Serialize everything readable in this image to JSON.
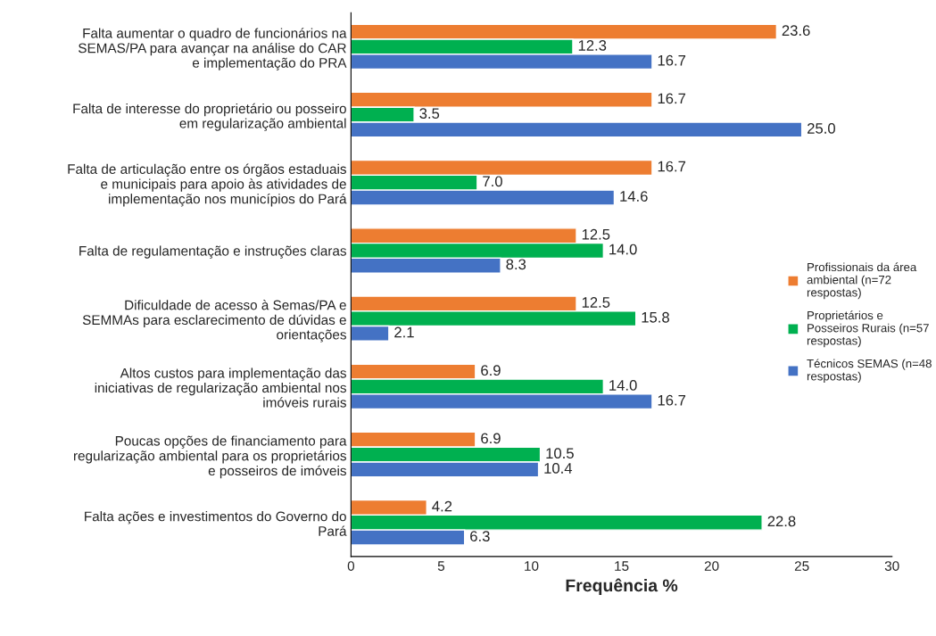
{
  "chart_data": {
    "type": "bar",
    "orientation": "horizontal",
    "categories": [
      "Falta aumentar o quadro de funcionários na\nSEMAS/PA para avançar na análise do CAR\ne implementação do PRA",
      "Falta de interesse do proprietário ou posseiro\nem regularização ambiental",
      "Falta de articulação entre os órgãos estaduais\ne municipais para apoio às atividades de\nimplementação nos municípios do Pará",
      "Falta de regulamentação e instruções claras",
      "Dificuldade de acesso à Semas/PA e\nSEMMAs para esclarecimento de dúvidas e\norientações",
      "Altos custos para implementação das\niniciativas de regularização ambiental nos\nimóveis rurais",
      "Poucas opções de financiamento para\nregularização ambiental para os proprietários\ne posseiros de imóveis",
      "Falta ações e investimentos do Governo do\nPará"
    ],
    "series": [
      {
        "name": "Profissionais da área\nambiental (n=72\nrespostas)",
        "color": "#ed7d31",
        "values": [
          23.6,
          16.7,
          16.7,
          12.5,
          12.5,
          6.9,
          6.9,
          4.2
        ],
        "value_labels": [
          "23.6",
          "16.7",
          "16.7",
          "12.5",
          "12.5",
          "6.9",
          "6.9",
          "4.2"
        ]
      },
      {
        "name": "Proprietários e\nPosseiros Rurais (n=57\nrespostas)",
        "color": "#00b050",
        "values": [
          12.3,
          3.5,
          7.0,
          14.0,
          15.8,
          14.0,
          10.5,
          22.8
        ],
        "value_labels": [
          "12.3",
          "3.5",
          "7.0",
          "14.0",
          "15.8",
          "14.0",
          "10.5",
          "22.8"
        ]
      },
      {
        "name": "Técnicos SEMAS (n=48\nrespostas)",
        "color": "#4472c4",
        "values": [
          16.7,
          25.0,
          14.6,
          8.3,
          2.1,
          16.7,
          10.4,
          6.3
        ],
        "value_labels": [
          "16.7",
          "25.0",
          "14.6",
          "8.3",
          "2.1",
          "16.7",
          "10.4",
          "6.3"
        ]
      }
    ],
    "xlim": [
      0,
      30
    ],
    "xticks": [
      0,
      5,
      10,
      15,
      20,
      25,
      30
    ],
    "xlabel": "Frequência %",
    "legend": "right"
  }
}
